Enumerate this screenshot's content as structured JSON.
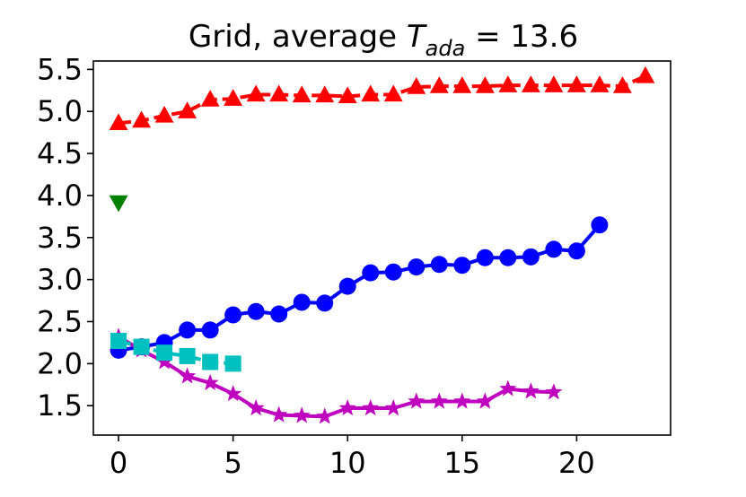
{
  "chart_data": {
    "type": "line",
    "title": {
      "prefix": "Grid, average ",
      "symbol": "T",
      "subscript": "ada",
      "suffix": " = 13.6"
    },
    "xlabel": "",
    "ylabel": "",
    "xlim": [
      -1.1,
      24.1
    ],
    "ylim": [
      1.15,
      5.6
    ],
    "xticks": [
      0,
      5,
      10,
      15,
      20
    ],
    "xtick_labels": [
      "0",
      "5",
      "10",
      "15",
      "20"
    ],
    "yticks": [
      1.5,
      2.0,
      2.5,
      3.0,
      3.5,
      4.0,
      4.5,
      5.0,
      5.5
    ],
    "ytick_labels": [
      "1.5",
      "2.0",
      "2.5",
      "3.0",
      "3.5",
      "4.0",
      "4.5",
      "5.0",
      "5.5"
    ],
    "grid": false,
    "legend": "none",
    "series": [
      {
        "name": "red-triangle-up",
        "color": "#ff0000",
        "marker": "triangle-up",
        "line": "dashed",
        "x": [
          0,
          1,
          2,
          3,
          4,
          5,
          6,
          7,
          8,
          9,
          10,
          11,
          12,
          13,
          14,
          15,
          16,
          17,
          18,
          19,
          20,
          21,
          22,
          23
        ],
        "values": [
          4.86,
          4.89,
          4.95,
          5.0,
          5.14,
          5.15,
          5.2,
          5.2,
          5.19,
          5.19,
          5.18,
          5.2,
          5.2,
          5.29,
          5.3,
          5.3,
          5.3,
          5.31,
          5.31,
          5.31,
          5.31,
          5.31,
          5.3,
          5.42
        ]
      },
      {
        "name": "blue-circle",
        "color": "#0000ff",
        "marker": "circle",
        "line": "solid",
        "x": [
          0,
          1,
          2,
          3,
          4,
          5,
          6,
          7,
          8,
          9,
          10,
          11,
          12,
          13,
          14,
          15,
          16,
          17,
          18,
          19,
          20,
          21
        ],
        "values": [
          2.16,
          2.2,
          2.25,
          2.4,
          2.4,
          2.58,
          2.62,
          2.59,
          2.73,
          2.72,
          2.92,
          3.08,
          3.09,
          3.15,
          3.18,
          3.17,
          3.26,
          3.26,
          3.27,
          3.36,
          3.34,
          3.65
        ]
      },
      {
        "name": "magenta-star",
        "color": "#bf00bf",
        "marker": "star",
        "line": "solid",
        "x": [
          0,
          1,
          2,
          3,
          4,
          5,
          6,
          7,
          8,
          9,
          10,
          11,
          12,
          13,
          14,
          15,
          16,
          17,
          18,
          19
        ],
        "values": [
          2.32,
          2.16,
          2.02,
          1.85,
          1.77,
          1.64,
          1.47,
          1.39,
          1.38,
          1.37,
          1.47,
          1.47,
          1.47,
          1.55,
          1.55,
          1.55,
          1.55,
          1.7,
          1.67,
          1.66
        ]
      },
      {
        "name": "cyan-square",
        "color": "#00bfbf",
        "marker": "square",
        "line": "dashed",
        "x": [
          0,
          1,
          2,
          3,
          4,
          5
        ],
        "values": [
          2.27,
          2.2,
          2.13,
          2.09,
          2.02,
          2.0
        ]
      },
      {
        "name": "green-triangle-down",
        "color": "#008000",
        "marker": "triangle-down",
        "line": "none",
        "x": [
          0
        ],
        "values": [
          3.92
        ]
      }
    ]
  }
}
